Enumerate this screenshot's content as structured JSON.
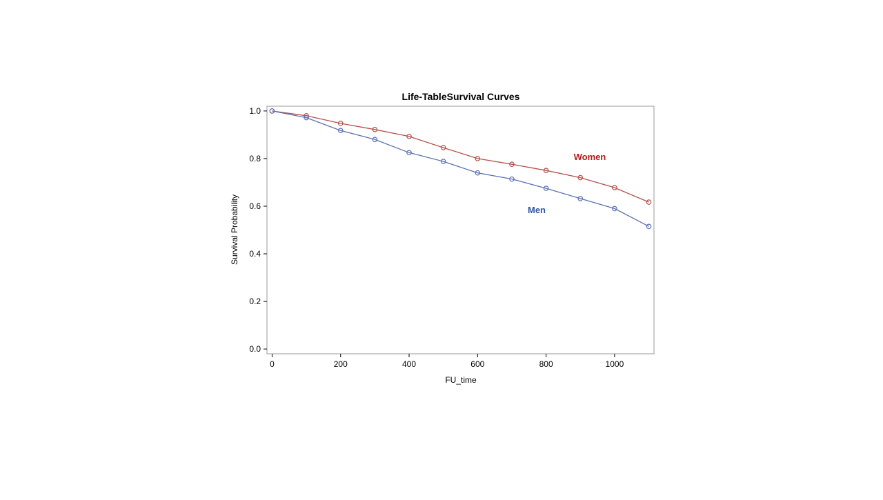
{
  "chart_data": {
    "type": "line",
    "title": "Life-TableSurvival Curves",
    "xlabel": "FU_time",
    "ylabel": "Survival Probability",
    "xlim": [
      -15,
      1115
    ],
    "ylim": [
      -0.02,
      1.02
    ],
    "xticks": [
      0,
      200,
      400,
      600,
      800,
      1000
    ],
    "yticks": [
      0.0,
      0.2,
      0.4,
      0.6,
      0.8,
      1.0
    ],
    "xtick_labels": [
      "0",
      "200",
      "400",
      "600",
      "800",
      "1000"
    ],
    "ytick_labels": [
      "0.0",
      "0.2",
      "0.4",
      "0.6",
      "0.8",
      "1.0"
    ],
    "grid": false,
    "legend": "inline labels",
    "x": [
      0,
      100,
      200,
      300,
      400,
      500,
      600,
      700,
      800,
      900,
      1000,
      1100
    ],
    "series": [
      {
        "name": "Women",
        "color": "#b5504a",
        "label_color": "#b01c1c",
        "values": [
          1.0,
          0.98,
          0.948,
          0.922,
          0.893,
          0.846,
          0.8,
          0.776,
          0.75,
          0.72,
          0.678,
          0.617
        ]
      },
      {
        "name": "Men",
        "color": "#5b71b4",
        "label_color": "#2e54a0",
        "values": [
          1.0,
          0.972,
          0.918,
          0.88,
          0.825,
          0.788,
          0.74,
          0.714,
          0.675,
          0.632,
          0.59,
          0.515
        ]
      }
    ]
  }
}
